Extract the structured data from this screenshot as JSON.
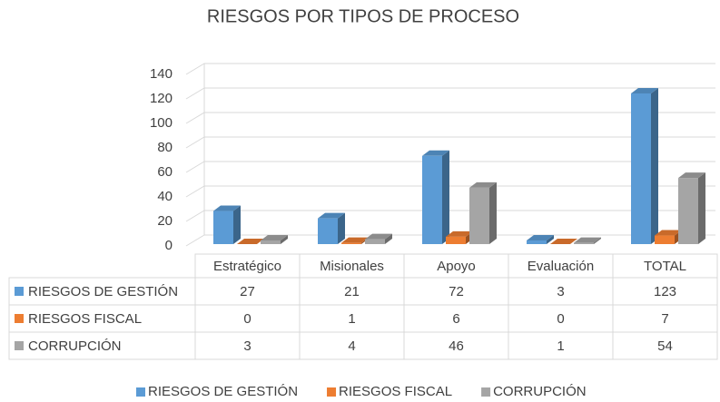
{
  "chart_data": {
    "type": "bar3d",
    "title": "RIESGOS POR TIPOS DE PROCESO",
    "categories": [
      "Estratégico",
      "Misionales",
      "Apoyo",
      "Evaluación",
      "TOTAL"
    ],
    "series": [
      {
        "name": "RIESGOS DE GESTIÓN",
        "color": "#5b9bd5",
        "values": [
          27,
          21,
          72,
          3,
          123
        ]
      },
      {
        "name": "RIESGOS FISCAL",
        "color": "#ed7d31",
        "values": [
          0,
          1,
          6,
          0,
          7
        ]
      },
      {
        "name": "CORRUPCIÓN",
        "color": "#a5a5a5",
        "values": [
          3,
          4,
          46,
          1,
          54
        ]
      }
    ],
    "ylim": [
      0,
      140
    ],
    "yticks": [
      0,
      20,
      40,
      60,
      80,
      100,
      120,
      140
    ],
    "grid": true,
    "legend": "bottom"
  }
}
